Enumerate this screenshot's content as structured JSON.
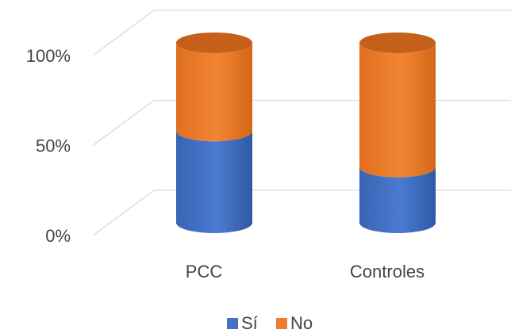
{
  "chart_data": {
    "type": "bar",
    "stacked": true,
    "style": "3d-cylinder",
    "categories": [
      "PCC",
      "Controles"
    ],
    "series": [
      {
        "name": "Sí",
        "values": [
          51,
          31
        ]
      },
      {
        "name": "No",
        "values": [
          49,
          69
        ]
      }
    ],
    "ylim": [
      0,
      100
    ],
    "yticks": [
      "0%",
      "50%",
      "100%"
    ],
    "grid": true,
    "legend": "bottom",
    "colors": {
      "si": "#4472C4",
      "no": "#ED7D31"
    }
  }
}
